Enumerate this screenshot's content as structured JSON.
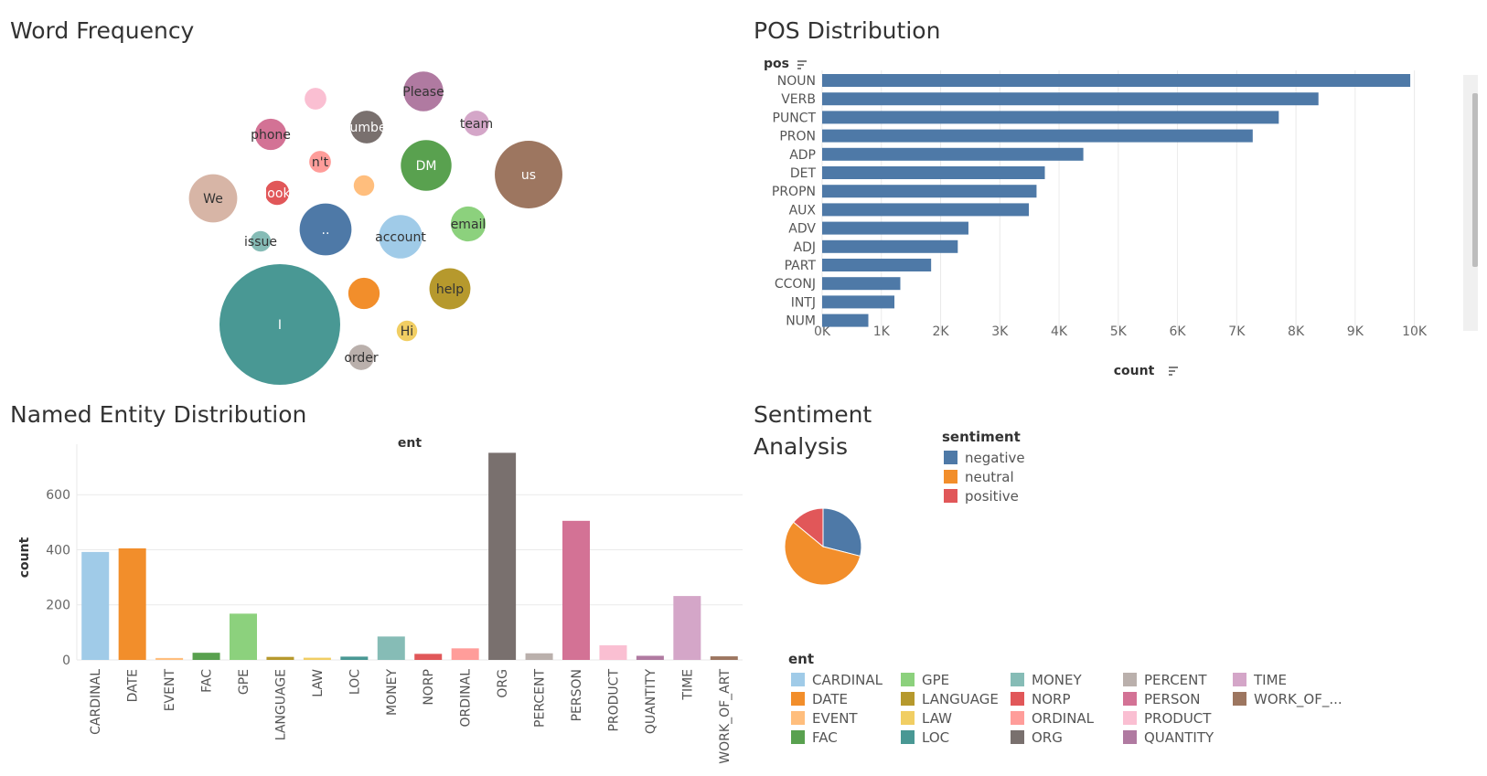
{
  "panels": {
    "word_frequency": {
      "title": "Word Frequency"
    },
    "pos": {
      "title": "POS Distribution"
    },
    "ner": {
      "title": "Named Entity Distribution"
    },
    "sentiment": {
      "title_line1": "Sentiment",
      "title_line2": "Analysis"
    }
  },
  "chart_data": [
    {
      "id": "word_frequency",
      "type": "bubble",
      "title": "Word Frequency",
      "bubbles": [
        {
          "word": "I",
          "size": 100,
          "color": "#499894"
        },
        {
          "word": "us",
          "size": 56,
          "color": "#9d7660"
        },
        {
          "word": "..",
          "size": 43,
          "color": "#4e79a7"
        },
        {
          "word": "account",
          "size": 36,
          "color": "#a0cbe8"
        },
        {
          "word": "We",
          "size": 40,
          "color": "#d7b5a6"
        },
        {
          "word": "DM",
          "size": 42,
          "color": "#59a14f"
        },
        {
          "word": "help",
          "size": 34,
          "color": "#b6992d"
        },
        {
          "word": "Please",
          "size": 33,
          "color": "#b07aa1"
        },
        {
          "word": "email",
          "size": 29,
          "color": "#8cd17d"
        },
        {
          "word": "number",
          "size": 27,
          "color": "#79706e"
        },
        {
          "word": "",
          "size": 26,
          "color": "#f28e2b"
        },
        {
          "word": "phone",
          "size": 26,
          "color": "#d37295"
        },
        {
          "word": "team",
          "size": 21,
          "color": "#d4a6c8"
        },
        {
          "word": "order",
          "size": 21,
          "color": "#bab0ac"
        },
        {
          "word": "",
          "size": 18,
          "color": "#fabfd2"
        },
        {
          "word": "n't",
          "size": 18,
          "color": "#ff9d9a"
        },
        {
          "word": "",
          "size": 17,
          "color": "#ffbe7d"
        },
        {
          "word": "look",
          "size": 20,
          "color": "#e15759"
        },
        {
          "word": "issue",
          "size": 17,
          "color": "#86bcb6"
        },
        {
          "word": "Hi",
          "size": 17,
          "color": "#f1ce63"
        }
      ]
    },
    {
      "id": "pos",
      "type": "bar",
      "orientation": "horizontal",
      "title": "POS Distribution",
      "y_header": "pos",
      "xlabel": "count",
      "categories": [
        "NOUN",
        "VERB",
        "PUNCT",
        "PRON",
        "ADP",
        "DET",
        "PROPN",
        "AUX",
        "ADV",
        "ADJ",
        "PART",
        "CCONJ",
        "INTJ",
        "NUM"
      ],
      "values": [
        9930,
        8380,
        7710,
        7270,
        4410,
        3760,
        3620,
        3490,
        2470,
        2290,
        1840,
        1320,
        1220,
        780
      ],
      "xlim": [
        0,
        10500
      ],
      "xticks": [
        "0K",
        "1K",
        "2K",
        "3K",
        "4K",
        "5K",
        "6K",
        "7K",
        "8K",
        "9K",
        "10K"
      ],
      "color": "#4e79a7"
    },
    {
      "id": "ner",
      "type": "bar",
      "title": "Named Entity Distribution",
      "header": "ent",
      "ylabel": "count",
      "ylim": [
        0,
        750
      ],
      "yticks": [
        "0",
        "200",
        "400",
        "600"
      ],
      "categories": [
        "CARDINAL",
        "DATE",
        "EVENT",
        "FAC",
        "GPE",
        "LANGUAGE",
        "LAW",
        "LOC",
        "MONEY",
        "NORP",
        "ORDINAL",
        "ORG",
        "PERCENT",
        "PERSON",
        "PRODUCT",
        "QUANTITY",
        "TIME",
        "WORK_OF_ART"
      ],
      "values": [
        392,
        405,
        7,
        26,
        168,
        11,
        8,
        12,
        85,
        22,
        42,
        752,
        24,
        505,
        53,
        15,
        232,
        13
      ],
      "colors": [
        "#a0cbe8",
        "#f28e2b",
        "#ffbe7d",
        "#59a14f",
        "#8cd17d",
        "#b6992d",
        "#f1ce63",
        "#499894",
        "#86bcb6",
        "#e15759",
        "#ff9d9a",
        "#79706e",
        "#bab0ac",
        "#d37295",
        "#fabfd2",
        "#b07aa1",
        "#d4a6c8",
        "#9d7660"
      ],
      "legend": {
        "title": "ent",
        "items": [
          "CARDINAL",
          "DATE",
          "EVENT",
          "FAC",
          "GPE",
          "LANGUAGE",
          "LAW",
          "LOC",
          "MONEY",
          "NORP",
          "ORDINAL",
          "ORG",
          "PERCENT",
          "PERSON",
          "PRODUCT",
          "QUANTITY",
          "TIME",
          "WORK_OF_..."
        ]
      }
    },
    {
      "id": "sentiment",
      "type": "pie",
      "title": "Sentiment Analysis",
      "slices": [
        {
          "label": "negative",
          "value": 29,
          "color": "#4e79a7"
        },
        {
          "label": "neutral",
          "value": 57,
          "color": "#f28e2b"
        },
        {
          "label": "positive",
          "value": 14,
          "color": "#e15759"
        }
      ],
      "legend": {
        "title": "sentiment",
        "items": [
          "negative",
          "neutral",
          "positive"
        ]
      }
    }
  ]
}
